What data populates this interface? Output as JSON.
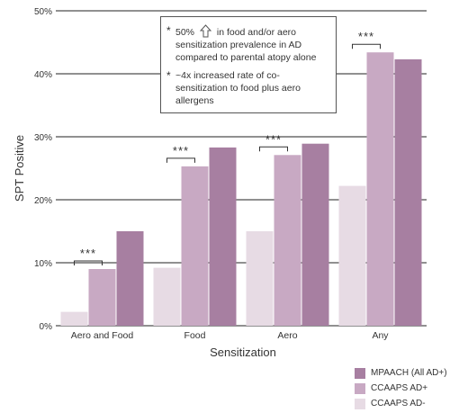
{
  "chart_data": {
    "type": "bar",
    "categories": [
      "Aero and Food",
      "Food",
      "Aero",
      "Any"
    ],
    "series": [
      {
        "name": "CCAAPS AD-",
        "color": "#e7dbe4",
        "values": [
          2.2,
          9.2,
          15.0,
          22.2
        ]
      },
      {
        "name": "CCAAPS AD+",
        "color": "#c8a9c3",
        "values": [
          9.0,
          25.3,
          27.1,
          43.4
        ]
      },
      {
        "name": "MPAACH (All AD+)",
        "color": "#a77fa1",
        "values": [
          15.0,
          28.3,
          28.9,
          42.3
        ]
      }
    ],
    "xlabel": "Sensitization",
    "ylabel": "SPT Positive",
    "ylim": [
      0,
      50
    ],
    "yticks": [
      "0%",
      "10%",
      "20%",
      "30%",
      "40%",
      "50%"
    ],
    "significance": [
      "***",
      "***",
      "***",
      "***"
    ],
    "grid": true,
    "legend_position": "bottom-right"
  },
  "callout": {
    "note1_bullet": "*",
    "note1_prefix": "50%",
    "note1_icon": "up-arrow-icon",
    "note1_rest": "in food and/or aero sensitization prevalence in AD compared to parental atopy alone",
    "note2_bullet": "*",
    "note2_text": "~4x increased rate of co-sensitization to food plus aero allergens"
  },
  "legend": [
    {
      "label": "MPAACH (All AD+)",
      "color": "#a77fa1"
    },
    {
      "label": "CCAAPS AD+",
      "color": "#c8a9c3"
    },
    {
      "label": "CCAAPS AD-",
      "color": "#e7dbe4"
    }
  ]
}
